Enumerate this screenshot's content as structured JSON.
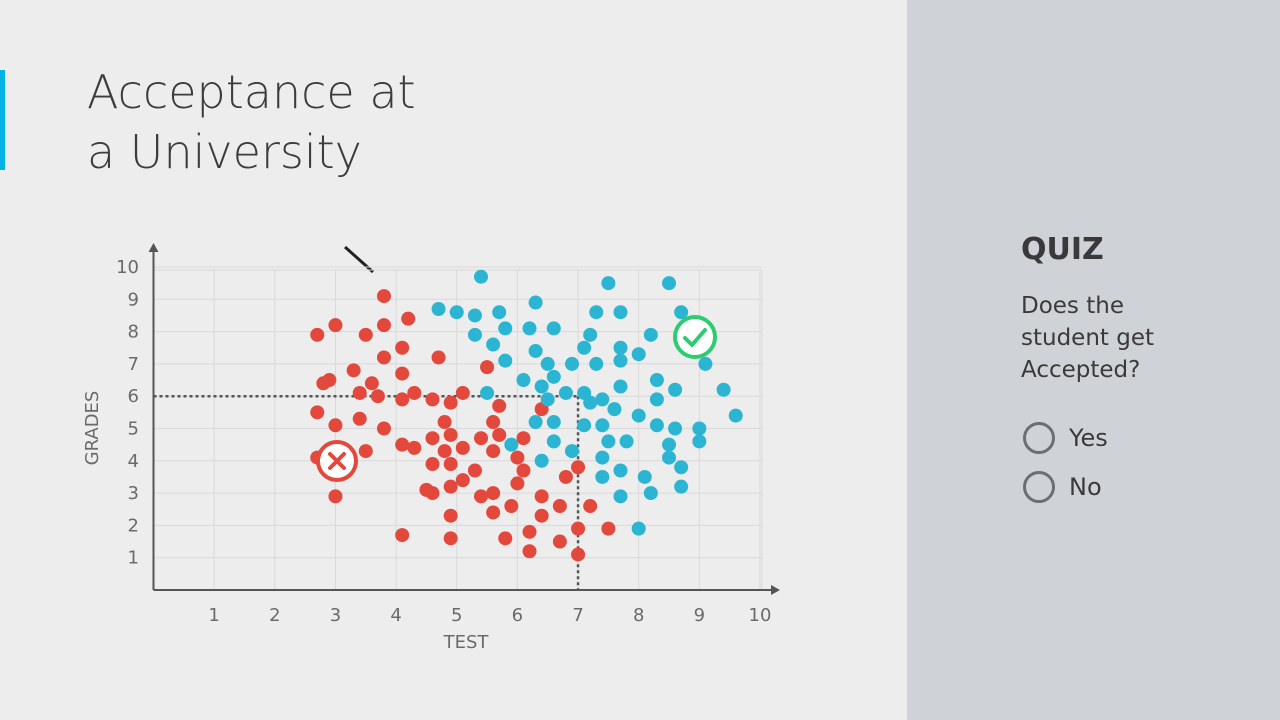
{
  "slide_title": "Acceptance at a University",
  "chart_data": {
    "type": "scatter",
    "x_label": "TEST",
    "y_label": "GRADES",
    "xlim": [
      0,
      10
    ],
    "ylim": [
      0,
      10
    ],
    "xticks": [
      1,
      2,
      3,
      4,
      5,
      6,
      7,
      8,
      9,
      10
    ],
    "yticks": [
      1,
      2,
      3,
      4,
      5,
      6,
      7,
      8,
      9,
      10
    ],
    "grid": true,
    "query_point": {
      "x": 7,
      "y": 6
    },
    "series": [
      {
        "color": "#e2483c",
        "x": [
          3.8,
          3.0,
          2.7,
          3.5,
          3.8,
          4.2,
          4.1,
          3.8,
          4.7,
          3.3,
          2.9,
          2.8,
          3.6,
          4.1,
          3.4,
          3.7,
          4.3,
          4.1,
          4.6,
          5.1,
          4.9,
          5.5,
          2.7,
          3.4,
          3.0,
          3.8,
          4.8,
          5.7,
          6.4,
          5.6,
          4.1,
          4.3,
          4.6,
          4.9,
          5.1,
          5.4,
          5.7,
          3.5,
          2.7,
          4.6,
          4.8,
          4.9,
          5.3,
          5.6,
          6.0,
          6.1,
          6.1,
          6.8,
          7.0,
          6.0,
          5.1,
          4.9,
          4.5,
          4.6,
          5.4,
          5.6,
          6.4,
          5.9,
          4.9,
          5.6,
          6.4,
          6.7,
          7.2,
          3.0,
          4.1,
          4.9,
          5.8,
          6.2,
          7.0,
          7.5,
          6.2,
          6.7,
          7.0
        ],
        "values": [
          9.1,
          8.2,
          7.9,
          7.9,
          8.2,
          8.4,
          7.5,
          7.2,
          7.2,
          6.8,
          6.5,
          6.4,
          6.4,
          6.7,
          6.1,
          6.0,
          6.1,
          5.9,
          5.9,
          6.1,
          5.8,
          6.9,
          5.5,
          5.3,
          5.1,
          5.0,
          5.2,
          5.7,
          5.6,
          5.2,
          4.5,
          4.4,
          4.7,
          4.8,
          4.4,
          4.7,
          4.8,
          4.3,
          4.1,
          3.9,
          4.3,
          3.9,
          3.7,
          4.3,
          4.1,
          4.7,
          3.7,
          3.5,
          3.8,
          3.3,
          3.4,
          3.2,
          3.1,
          3.0,
          2.9,
          3.0,
          2.9,
          2.6,
          2.3,
          2.4,
          2.3,
          2.6,
          2.6,
          2.9,
          1.7,
          1.6,
          1.6,
          1.8,
          1.9,
          1.9,
          1.2,
          1.5,
          1.1
        ]
      },
      {
        "color": "#2cb5d2",
        "x": [
          5.4,
          7.5,
          8.5,
          6.3,
          4.7,
          5.0,
          5.3,
          5.7,
          7.3,
          7.7,
          8.7,
          5.3,
          5.8,
          6.2,
          6.6,
          7.2,
          8.2,
          5.6,
          6.3,
          7.1,
          7.7,
          8.0,
          6.5,
          6.9,
          5.8,
          7.3,
          7.7,
          9.1,
          6.1,
          6.4,
          6.6,
          7.7,
          8.3,
          8.6,
          9.4,
          5.5,
          6.5,
          6.8,
          7.1,
          7.2,
          7.4,
          8.3,
          9.6,
          6.3,
          6.6,
          7.1,
          7.4,
          7.6,
          8.0,
          8.3,
          8.6,
          9.0,
          5.9,
          6.6,
          6.9,
          7.5,
          7.8,
          8.5,
          9.0,
          6.4,
          7.4,
          8.5,
          8.7,
          7.4,
          7.7,
          8.1,
          7.7,
          8.2,
          8.7,
          8.0
        ],
        "values": [
          9.7,
          9.5,
          9.5,
          8.9,
          8.7,
          8.6,
          8.5,
          8.6,
          8.6,
          8.6,
          8.6,
          7.9,
          8.1,
          8.1,
          8.1,
          7.9,
          7.9,
          7.6,
          7.4,
          7.5,
          7.5,
          7.3,
          7.0,
          7.0,
          7.1,
          7.0,
          7.1,
          7.0,
          6.5,
          6.3,
          6.6,
          6.3,
          6.5,
          6.2,
          6.2,
          6.1,
          5.9,
          6.1,
          6.1,
          5.8,
          5.9,
          5.9,
          5.4,
          5.2,
          5.2,
          5.1,
          5.1,
          5.6,
          5.4,
          5.1,
          5.0,
          5.0,
          4.5,
          4.6,
          4.3,
          4.6,
          4.6,
          4.5,
          4.6,
          4.0,
          4.1,
          4.1,
          3.8,
          3.5,
          3.7,
          3.5,
          2.9,
          3.0,
          3.2,
          1.9
        ]
      }
    ]
  },
  "quiz": {
    "heading": "QUIZ",
    "question": "Does the student get Accepted?",
    "options": [
      "Yes",
      "No"
    ]
  }
}
